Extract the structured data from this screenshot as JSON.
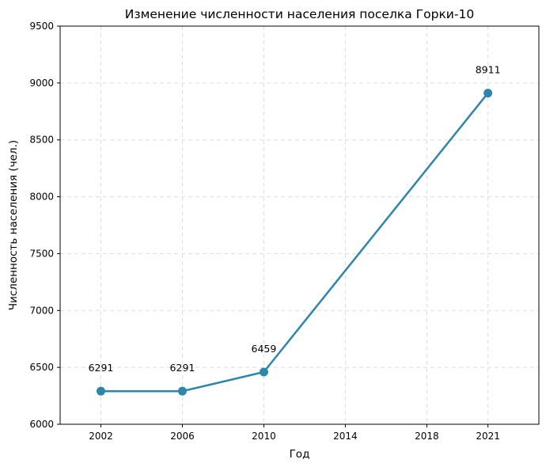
{
  "chart_data": {
    "type": "line",
    "title": "Изменение численности населения поселка Горки-10",
    "xlabel": "Год",
    "ylabel": "Численность населения (чел.)",
    "x": [
      2002,
      2006,
      2010,
      2021
    ],
    "xticks": [
      "2002",
      "2006",
      "2010",
      "2014",
      "2018",
      "2021"
    ],
    "xtick_values": [
      2002,
      2006,
      2010,
      2014,
      2018,
      2021
    ],
    "ylim": [
      6000,
      9500
    ],
    "yticks": [
      "6000",
      "6500",
      "7000",
      "7500",
      "8000",
      "8500",
      "9000",
      "9500"
    ],
    "series": [
      {
        "values": [
          6291,
          6291,
          6459,
          8911
        ],
        "color": "#2e86ab"
      }
    ],
    "data_labels": [
      "6291",
      "6291",
      "6459",
      "8911"
    ],
    "grid": true
  }
}
